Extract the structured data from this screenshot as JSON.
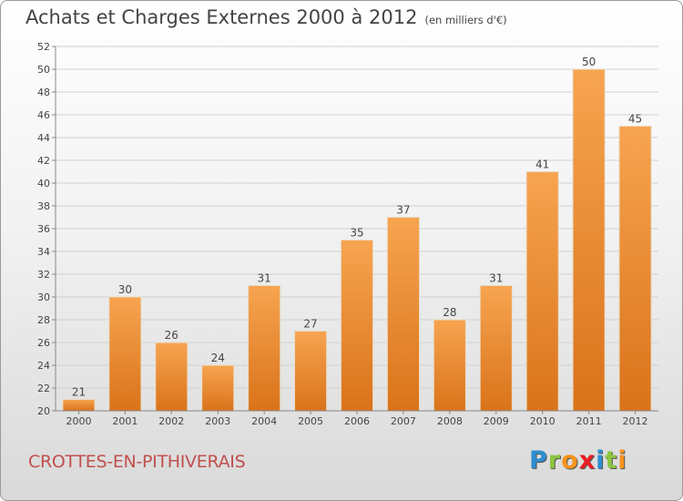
{
  "title": "Achats et Charges Externes 2000 à 2012",
  "subtitle": "(en milliers d'€)",
  "place": "CROTTES-EN-PITHIVERAIS",
  "logo": {
    "letters": [
      {
        "ch": "P",
        "color": "#2e8fd0"
      },
      {
        "ch": "r",
        "color": "#8cc63f"
      },
      {
        "ch": "o",
        "color": "#f7941d"
      },
      {
        "ch": "x",
        "color": "#ec1c24"
      },
      {
        "ch": "i",
        "color": "#2e8fd0"
      },
      {
        "ch": "t",
        "color": "#8cc63f"
      },
      {
        "ch": "i",
        "color": "#f7941d"
      }
    ]
  },
  "colors": {
    "bar_top": "#f7a450",
    "bar_bottom": "#d9731a",
    "bar_edge": "#e8dcc8"
  },
  "chart_data": {
    "type": "bar",
    "categories": [
      "2000",
      "2001",
      "2002",
      "2003",
      "2004",
      "2005",
      "2006",
      "2007",
      "2008",
      "2009",
      "2010",
      "2011",
      "2012"
    ],
    "values": [
      21,
      30,
      26,
      24,
      31,
      27,
      35,
      37,
      28,
      31,
      41,
      50,
      45
    ],
    "title": "Achats et Charges Externes 2000 à 2012",
    "xlabel": "",
    "ylabel": "",
    "ylim": [
      20,
      52
    ],
    "yticks": [
      20,
      22,
      24,
      26,
      28,
      30,
      32,
      34,
      36,
      38,
      40,
      42,
      44,
      46,
      48,
      50,
      52
    ],
    "grid": true
  }
}
